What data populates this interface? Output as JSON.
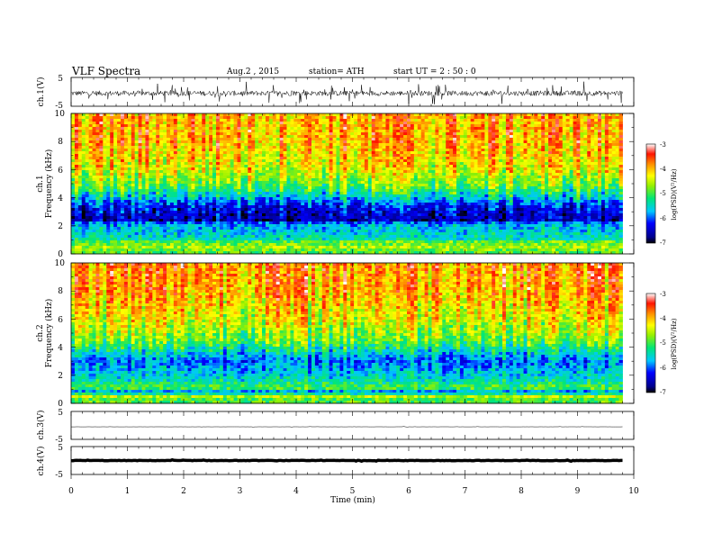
{
  "header": {
    "title": "VLF  Spectra",
    "date": "Aug.2  , 2015",
    "station": "station= ATH",
    "start": "start  UT  =   2  : 50 : 0"
  },
  "chart_data": [
    {
      "id": "ch1-waveform",
      "type": "line",
      "ylabel": "ch.1(V)",
      "ylim": [
        -5,
        5
      ],
      "yticks": [
        "5",
        "-5"
      ],
      "xlim": [
        0,
        10
      ],
      "trace_end_min": 9.8,
      "baseline_v": -0.5,
      "noise_amplitude_v": 3.5,
      "color": "#000000"
    },
    {
      "id": "ch1-spectrogram",
      "type": "heatmap",
      "ylabel_channel": "ch.1",
      "ylabel": "Frequency  (kHz)",
      "ylim": [
        0,
        10
      ],
      "yticks": [
        "0",
        "2",
        "4",
        "6",
        "8",
        "10"
      ],
      "xlim": [
        0,
        10
      ],
      "data_end_min": 9.8,
      "colorbar": {
        "label": "log(PSD)(V²/Hz)",
        "range": [
          -7,
          -3
        ],
        "ticks": [
          "-7",
          "-6",
          "-5",
          "-4",
          "-3"
        ]
      },
      "profile": [
        {
          "f_khz": 0.0,
          "log_psd": -5.0
        },
        {
          "f_khz": 0.5,
          "log_psd": -4.6
        },
        {
          "f_khz": 1.0,
          "log_psd": -5.4
        },
        {
          "f_khz": 2.0,
          "log_psd": -5.7
        },
        {
          "f_khz": 2.6,
          "log_psd": -6.5
        },
        {
          "f_khz": 3.3,
          "log_psd": -6.3
        },
        {
          "f_khz": 4.0,
          "log_psd": -5.6
        },
        {
          "f_khz": 4.8,
          "log_psd": -4.9
        },
        {
          "f_khz": 6.0,
          "log_psd": -4.3
        },
        {
          "f_khz": 8.0,
          "log_psd": -3.95
        },
        {
          "f_khz": 10.0,
          "log_psd": -3.9
        }
      ]
    },
    {
      "id": "ch2-spectrogram",
      "type": "heatmap",
      "ylabel_channel": "ch.2",
      "ylabel": "Frequency  (kHz)",
      "ylim": [
        0,
        10
      ],
      "yticks": [
        "0",
        "2",
        "4",
        "6",
        "8",
        "10"
      ],
      "xlim": [
        0,
        10
      ],
      "data_end_min": 9.8,
      "colorbar": {
        "label": "log(PSD)(V²/Hz)",
        "range": [
          -7,
          -3
        ],
        "ticks": [
          "-7",
          "-6",
          "-5",
          "-4",
          "-3"
        ]
      },
      "profile": [
        {
          "f_khz": 0.0,
          "log_psd": -4.9
        },
        {
          "f_khz": 1.0,
          "log_psd": -5.0
        },
        {
          "f_khz": 2.0,
          "log_psd": -5.6
        },
        {
          "f_khz": 3.0,
          "log_psd": -5.9
        },
        {
          "f_khz": 3.5,
          "log_psd": -5.6
        },
        {
          "f_khz": 4.5,
          "log_psd": -4.8
        },
        {
          "f_khz": 6.0,
          "log_psd": -4.3
        },
        {
          "f_khz": 8.0,
          "log_psd": -3.9
        },
        {
          "f_khz": 10.0,
          "log_psd": -3.8
        }
      ]
    },
    {
      "id": "ch3-waveform",
      "type": "line",
      "ylabel": "ch.3(V)",
      "ylim": [
        -5,
        5
      ],
      "yticks": [
        "5",
        "-5"
      ],
      "xlim": [
        0,
        10
      ],
      "trace_end_min": 9.8,
      "baseline_v": -0.5,
      "noise_amplitude_v": 0.1,
      "color": "#000000"
    },
    {
      "id": "ch4-waveform",
      "type": "line",
      "ylabel": "ch.4(V)",
      "ylim": [
        -5,
        5
      ],
      "yticks": [
        "5",
        "-5"
      ],
      "xlim": [
        0,
        10
      ],
      "trace_end_min": 9.8,
      "baseline_v": 0,
      "noise_amplitude_v": 0.25,
      "color": "#000000"
    }
  ],
  "x_axis": {
    "label": "Time  (min)",
    "ticks": [
      "0",
      "1",
      "2",
      "3",
      "4",
      "5",
      "6",
      "7",
      "8",
      "9",
      "10"
    ]
  }
}
